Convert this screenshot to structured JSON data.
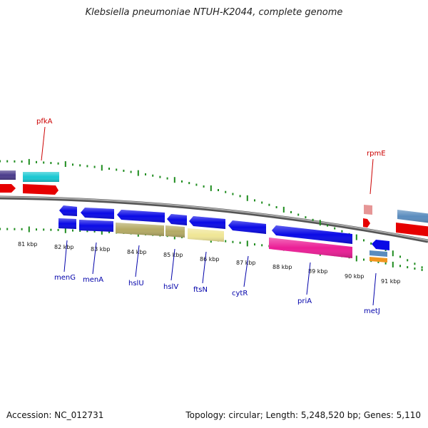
{
  "header": {
    "title": "Klebsiella pneumoniae NTUH-K2044, complete genome"
  },
  "footer": {
    "accession": "Accession: NC_012731",
    "summary": "Topology: circular; Length: 5,248,520 bp; Genes: 5,110"
  },
  "scale": {
    "tick_labels": [
      "81 kbp",
      "82 kbp",
      "83 kbp",
      "84 kbp",
      "85 kbp",
      "86 kbp",
      "87 kbp",
      "88 kbp",
      "89 kbp",
      "90 kbp",
      "91 kbp"
    ]
  },
  "genes": {
    "top_labels": [
      "pfkA",
      "rpmE"
    ],
    "bottom_labels": [
      "menG",
      "menA",
      "hslU",
      "hslV",
      "ftsN",
      "cytR",
      "priA",
      "metJ"
    ]
  },
  "colors": {
    "backbone": "#808080",
    "cds_blue": "#0a0ae6",
    "cds_red": "#e60000",
    "cds_cyan": "#19c8d2",
    "cds_purple": "#4b3c8c",
    "cds_olive": "#b4aa64",
    "cds_khaki": "#f0e696",
    "cds_magenta": "#eb1e96",
    "cds_steel": "#5a8cbe",
    "cds_orange": "#f0961e",
    "cds_pink": "#e69696",
    "tick_green": "#1e8c1e",
    "label_red": "#cc0000",
    "label_blue": "#0000aa"
  }
}
